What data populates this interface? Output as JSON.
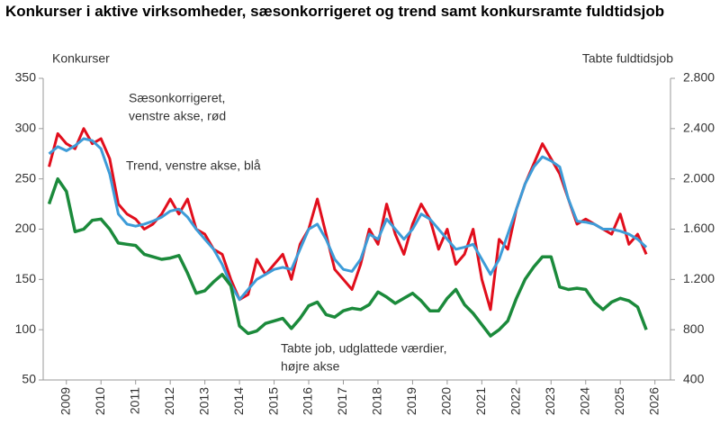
{
  "chart_data": {
    "type": "line",
    "title": "Konkurser i aktive virksomheder, sæsonkorrigeret og trend samt konkursramte fuldtidsjob",
    "y_label": "Konkurser",
    "y2_label": "Tabte fuldtidsjob",
    "annotations": [
      {
        "lines": [
          "Sæsonkorrigeret,",
          "venstre akse, rød"
        ]
      },
      {
        "lines": [
          "Trend, venstre akse, blå"
        ]
      },
      {
        "lines": [
          "Tabte job, udglattede værdier,",
          "højre akse"
        ]
      }
    ],
    "x": [
      2008.5,
      2008.75,
      2009,
      2009.25,
      2009.5,
      2009.75,
      2010,
      2010.25,
      2010.5,
      2010.75,
      2011,
      2011.25,
      2011.5,
      2011.75,
      2012,
      2012.25,
      2012.5,
      2012.75,
      2013,
      2013.25,
      2013.5,
      2013.75,
      2014,
      2014.25,
      2014.5,
      2014.75,
      2015,
      2015.25,
      2015.5,
      2015.75,
      2016,
      2016.25,
      2016.5,
      2016.75,
      2017,
      2017.25,
      2017.5,
      2017.75,
      2018,
      2018.25,
      2018.5,
      2018.75,
      2019,
      2019.25,
      2019.5,
      2019.75,
      2020,
      2020.25,
      2020.5,
      2020.75,
      2021,
      2021.25,
      2021.5,
      2021.75,
      2022,
      2022.25,
      2022.5,
      2022.75,
      2023,
      2023.25,
      2023.5,
      2023.75,
      2024,
      2024.25,
      2024.5,
      2024.75,
      2025,
      2025.25,
      2025.5,
      2025.75
    ],
    "series": [
      {
        "name": "Sæsonkorrigeret",
        "color": "#e10e1c",
        "width": 3,
        "values": [
          262,
          295,
          285,
          280,
          300,
          285,
          290,
          270,
          225,
          215,
          210,
          200,
          205,
          215,
          230,
          215,
          230,
          200,
          195,
          180,
          175,
          150,
          130,
          135,
          170,
          155,
          165,
          175,
          150,
          185,
          200,
          230,
          195,
          160,
          150,
          140,
          165,
          200,
          185,
          225,
          195,
          175,
          205,
          225,
          210,
          180,
          200,
          165,
          175,
          200,
          150,
          120,
          190,
          180,
          220,
          245,
          265,
          285,
          270,
          255,
          230,
          205,
          210,
          205,
          200,
          195,
          215,
          185,
          195,
          175
        ]
      },
      {
        "name": "Trend",
        "color": "#3d9cd8",
        "width": 3,
        "values": [
          275,
          282,
          278,
          283,
          290,
          288,
          280,
          255,
          215,
          205,
          203,
          205,
          208,
          212,
          218,
          220,
          212,
          200,
          190,
          180,
          165,
          145,
          130,
          140,
          150,
          155,
          160,
          162,
          160,
          180,
          200,
          205,
          190,
          170,
          160,
          158,
          170,
          195,
          190,
          210,
          200,
          190,
          200,
          215,
          210,
          200,
          190,
          180,
          182,
          185,
          170,
          155,
          170,
          195,
          220,
          245,
          262,
          272,
          268,
          262,
          230,
          208,
          207,
          205,
          200,
          200,
          198,
          195,
          190,
          182
        ]
      },
      {
        "name": "Tabte job",
        "color": "#1b8a3b",
        "width": 3.5,
        "axis": "y2",
        "values": [
          1800,
          2000,
          1900,
          1580,
          1600,
          1670,
          1680,
          1600,
          1490,
          1480,
          1470,
          1400,
          1380,
          1360,
          1370,
          1390,
          1250,
          1090,
          1110,
          1180,
          1240,
          1150,
          830,
          770,
          790,
          850,
          870,
          890,
          810,
          890,
          990,
          1020,
          920,
          900,
          950,
          970,
          960,
          1000,
          1100,
          1060,
          1010,
          1050,
          1090,
          1030,
          950,
          950,
          1050,
          1120,
          1000,
          930,
          840,
          750,
          800,
          870,
          1050,
          1200,
          1300,
          1380,
          1380,
          1140,
          1120,
          1130,
          1120,
          1020,
          960,
          1020,
          1050,
          1030,
          980,
          800
        ]
      }
    ],
    "xlim": [
      2008.33,
      2026.45
    ],
    "xticks": [
      2009,
      2010,
      2011,
      2012,
      2013,
      2014,
      2015,
      2016,
      2017,
      2018,
      2019,
      2020,
      2021,
      2022,
      2023,
      2024,
      2025,
      2026
    ],
    "ylim": [
      50,
      350
    ],
    "yticks": [
      50,
      100,
      150,
      200,
      250,
      300,
      350
    ],
    "y2lim": [
      400,
      2800
    ],
    "y2ticks": [
      400,
      800,
      {
        "value": 1200,
        "label": "1.200"
      },
      {
        "value": 1600,
        "label": "1.600"
      },
      {
        "value": 2000,
        "label": "2.000"
      },
      {
        "value": 2400,
        "label": "2.400"
      },
      {
        "value": 2800,
        "label": "2.800"
      }
    ],
    "grid": false
  }
}
